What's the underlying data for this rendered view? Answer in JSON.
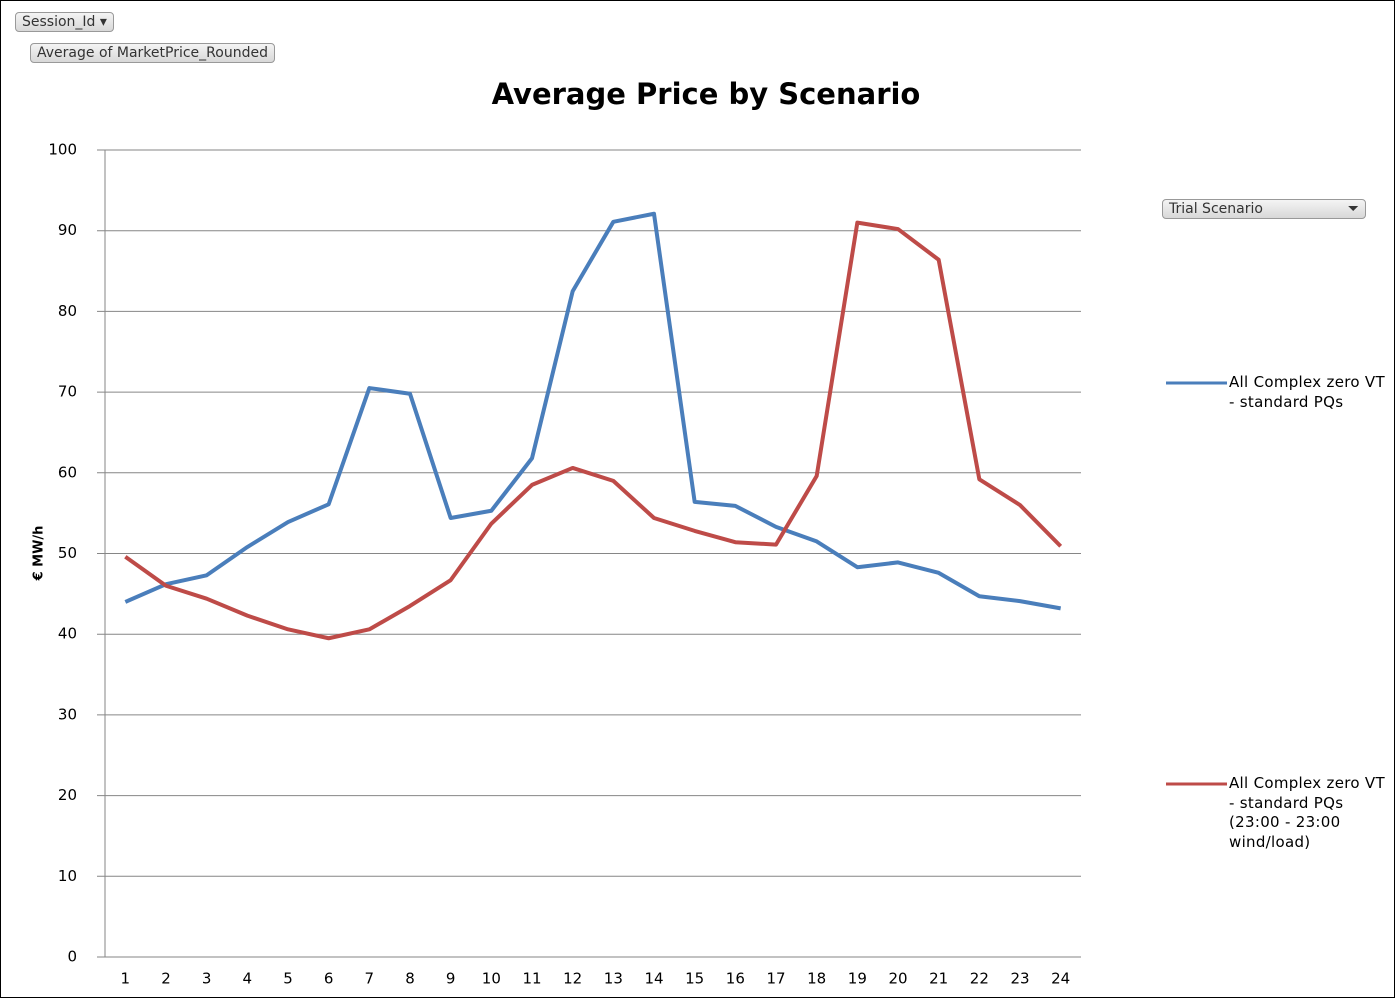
{
  "pivot": {
    "report_filter": "Session_Id",
    "values_field": "Average of MarketPrice_Rounded",
    "legend_field": "Trial Scenario"
  },
  "chart_data": {
    "type": "line",
    "title": "Average Price by Scenario",
    "y_label": "€ MW/h",
    "categories": [
      "1",
      "2",
      "3",
      "4",
      "5",
      "6",
      "7",
      "8",
      "9",
      "10",
      "11",
      "12",
      "13",
      "14",
      "15",
      "16",
      "17",
      "18",
      "19",
      "20",
      "21",
      "22",
      "23",
      "24"
    ],
    "series": [
      {
        "name": "All Complex zero VT - standard PQs",
        "color": "#4a7ebb",
        "values": [
          44.0,
          46.2,
          47.3,
          50.8,
          53.9,
          56.1,
          70.5,
          69.8,
          54.4,
          55.3,
          61.8,
          82.5,
          91.1,
          92.1,
          56.4,
          55.9,
          53.3,
          51.5,
          48.3,
          48.9,
          47.6,
          44.7,
          44.1,
          43.2
        ]
      },
      {
        "name": "All Complex zero VT - standard PQs (23:00 - 23:00 wind/load)",
        "color": "#be4b48",
        "values": [
          49.6,
          46.0,
          44.4,
          42.3,
          40.6,
          39.5,
          40.6,
          43.5,
          46.7,
          53.7,
          58.5,
          60.6,
          59.0,
          54.4,
          52.8,
          51.4,
          51.1,
          59.6,
          91.0,
          90.2,
          86.4,
          59.2,
          56.0,
          50.9
        ]
      }
    ],
    "ylim": [
      0,
      100
    ],
    "yticks": [
      0,
      10,
      20,
      30,
      40,
      50,
      60,
      70,
      80,
      90,
      100
    ],
    "grid": true
  }
}
